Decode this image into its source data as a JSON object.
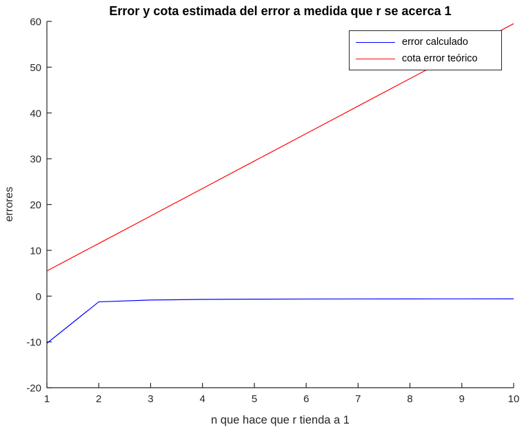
{
  "chart_data": {
    "type": "line",
    "title": "Error y cota estimada del error a medida que r se acerca 1",
    "xlabel": "n que hace que r tienda a 1",
    "ylabel": "errores",
    "x": [
      1,
      2,
      3,
      4,
      5,
      6,
      7,
      8,
      9,
      10
    ],
    "series": [
      {
        "name": "error calculado",
        "color": "#0000ff",
        "values": [
          -10.3,
          -1.25,
          -0.85,
          -0.72,
          -0.66,
          -0.63,
          -0.61,
          -0.6,
          -0.59,
          -0.58
        ]
      },
      {
        "name": "cota error teórico",
        "color": "#ff0000",
        "values": [
          5.5,
          11.5,
          17.5,
          23.5,
          29.5,
          35.5,
          41.5,
          47.5,
          53.5,
          59.5
        ]
      }
    ],
    "xlim": [
      1,
      10
    ],
    "ylim": [
      -20,
      60
    ],
    "xticks": [
      1,
      2,
      3,
      4,
      5,
      6,
      7,
      8,
      9,
      10
    ],
    "yticks": [
      -20,
      -10,
      0,
      10,
      20,
      30,
      40,
      50,
      60
    ],
    "grid": false,
    "legend_position": "top-right",
    "axis_color": "#262626",
    "tick_text_color": "#262626",
    "title_color": "#000000",
    "background_color": "#ffffff"
  }
}
